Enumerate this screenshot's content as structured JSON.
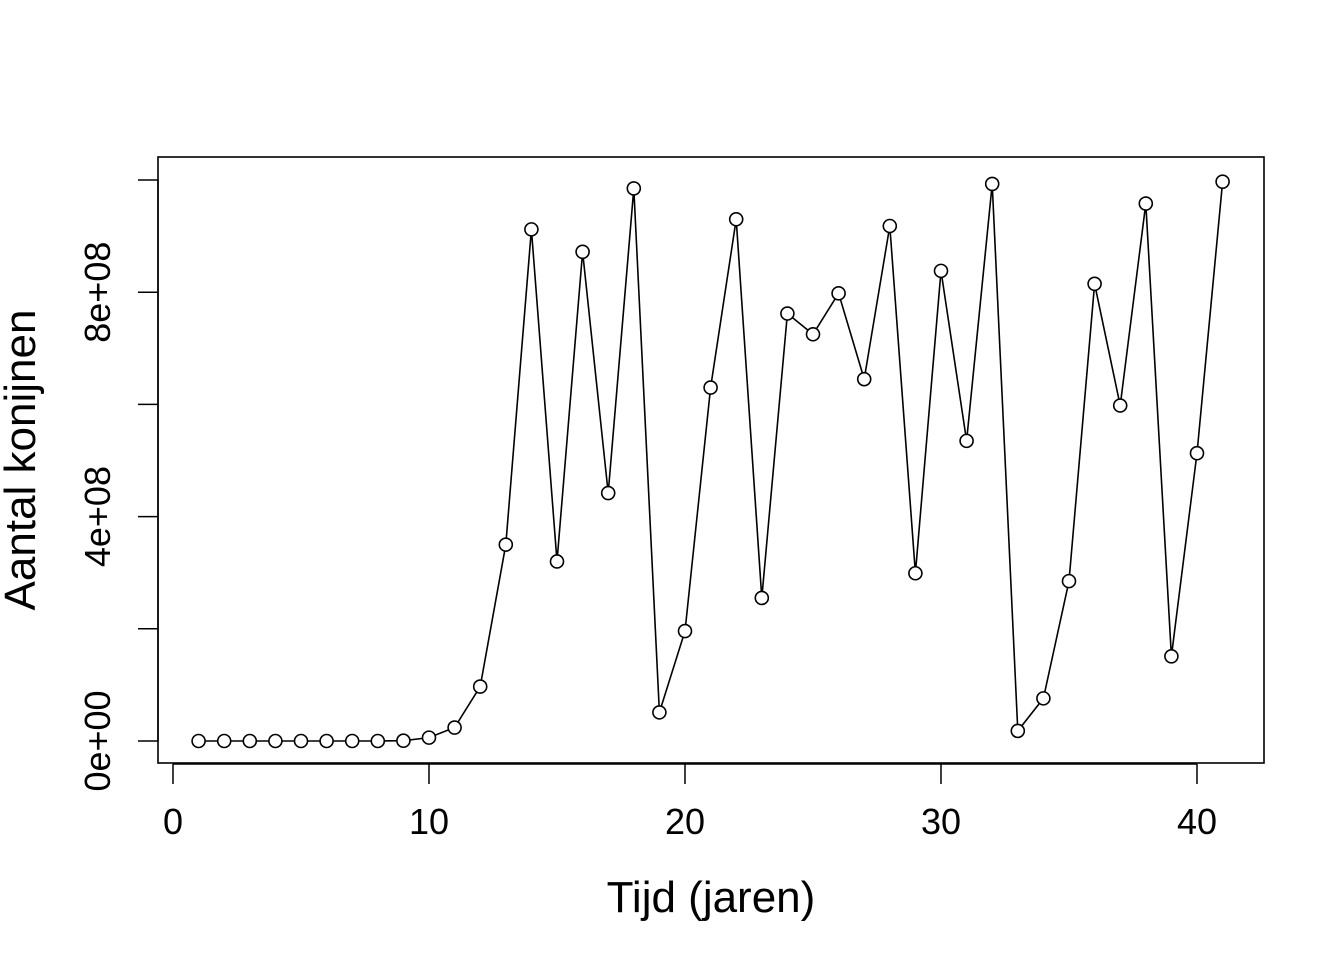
{
  "chart_data": {
    "type": "line",
    "xlabel": "Tijd (jaren)",
    "ylabel": "Aantal konijnen",
    "xlim": [
      0,
      41
    ],
    "ylim": [
      0,
      1040000000
    ],
    "x_ticks": [
      0,
      10,
      20,
      30,
      40
    ],
    "x_tick_labels": [
      "0",
      "10",
      "20",
      "30",
      "40"
    ],
    "y_ticks": [
      0,
      200000000,
      400000000,
      600000000,
      800000000,
      1000000000
    ],
    "y_tick_labels": [
      "0e+00",
      "",
      "4e+08",
      "",
      "8e+08",
      ""
    ],
    "series": [
      {
        "marker": "open-circle",
        "x": [
          1,
          2,
          3,
          4,
          5,
          6,
          7,
          8,
          9,
          10,
          11,
          12,
          13,
          14,
          15,
          16,
          17,
          18,
          19,
          20,
          21,
          22,
          23,
          24,
          25,
          26,
          27,
          28,
          29,
          30,
          31,
          32,
          33,
          34,
          35,
          36,
          37,
          38,
          39,
          40,
          41
        ],
        "values": [
          0,
          0,
          0,
          0,
          0,
          0,
          0,
          0,
          500000,
          6000000,
          24000000,
          97000000,
          350000000,
          912000000,
          320000000,
          872000000,
          442000000,
          985000000,
          51000000,
          196000000,
          630000000,
          930000000,
          255000000,
          762000000,
          725000000,
          798000000,
          645000000,
          918000000,
          299000000,
          838000000,
          535000000,
          993000000,
          18000000,
          76000000,
          285000000,
          815000000,
          598000000,
          958000000,
          151000000,
          513000000,
          997000000
        ]
      }
    ]
  }
}
